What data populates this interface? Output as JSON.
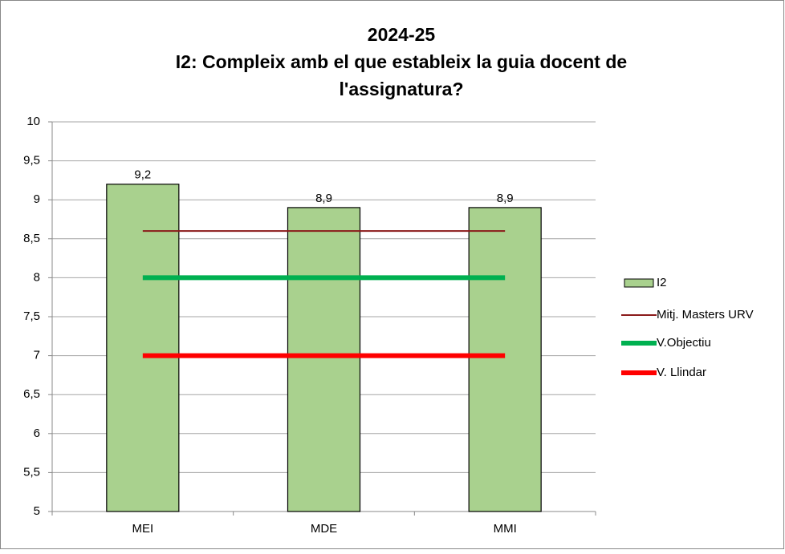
{
  "chart_data": {
    "type": "combo",
    "title": [
      "2024-25",
      "I2: Compleix amb el que estableix la guia docent de",
      "l'assignatura?"
    ],
    "categories": [
      "MEI",
      "MDE",
      "MMI"
    ],
    "series": [
      {
        "name": "I2",
        "type": "bar",
        "color": "#a9d18e",
        "values": [
          9.2,
          8.9,
          8.9
        ],
        "value_labels": [
          "9,2",
          "8,9",
          "8,9"
        ]
      },
      {
        "name": "Mitj. Masters URV",
        "type": "line",
        "color": "#8b1a1a",
        "width": 2,
        "values": [
          8.6,
          8.6,
          8.6
        ]
      },
      {
        "name": "V.Objectiu",
        "type": "line",
        "color": "#00b050",
        "width": 6,
        "values": [
          8,
          8,
          8
        ]
      },
      {
        "name": "V. Llindar",
        "type": "line",
        "color": "#ff0000",
        "width": 6,
        "values": [
          7,
          7,
          7
        ]
      }
    ],
    "ylim": [
      5,
      10
    ],
    "yticks": [
      5,
      {
        "value": 5.5,
        "label": "5,5"
      },
      6,
      {
        "value": 6.5,
        "label": "6,5"
      },
      7,
      {
        "value": 7.5,
        "label": "7,5"
      },
      8,
      {
        "value": 8.5,
        "label": "8,5"
      },
      9,
      {
        "value": 9.5,
        "label": "9,5"
      },
      10
    ],
    "grid": true,
    "legend": "right"
  }
}
